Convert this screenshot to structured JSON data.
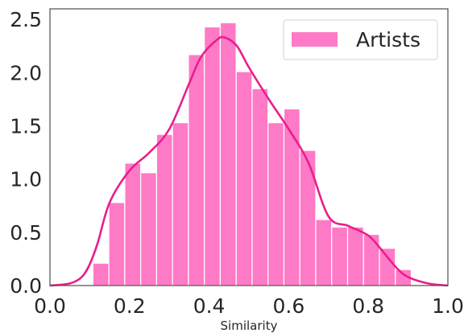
{
  "chart_data": {
    "type": "bar",
    "xlabel": "Similarity",
    "ylabel": "",
    "xlim": [
      0.0,
      1.0
    ],
    "ylim": [
      0.0,
      2.6
    ],
    "xticks": [
      "0.0",
      "0.2",
      "0.4",
      "0.6",
      "0.8",
      "1.0"
    ],
    "yticks": [
      "0.0",
      "0.5",
      "1.0",
      "1.5",
      "2.0",
      "2.5"
    ],
    "legend_position": "top-right",
    "grid": false,
    "series": [
      {
        "name": "Artists",
        "kind": "histogram",
        "color": "#ff7ac6",
        "bins": [
          {
            "x0": 0.108,
            "x1": 0.148,
            "value": 0.21
          },
          {
            "x0": 0.148,
            "x1": 0.188,
            "value": 0.78
          },
          {
            "x0": 0.188,
            "x1": 0.228,
            "value": 1.15
          },
          {
            "x0": 0.228,
            "x1": 0.268,
            "value": 1.06
          },
          {
            "x0": 0.268,
            "x1": 0.308,
            "value": 1.42
          },
          {
            "x0": 0.308,
            "x1": 0.348,
            "value": 1.53
          },
          {
            "x0": 0.348,
            "x1": 0.388,
            "value": 2.17
          },
          {
            "x0": 0.388,
            "x1": 0.428,
            "value": 2.43
          },
          {
            "x0": 0.428,
            "x1": 0.468,
            "value": 2.47
          },
          {
            "x0": 0.468,
            "x1": 0.508,
            "value": 2.01
          },
          {
            "x0": 0.508,
            "x1": 0.548,
            "value": 1.85
          },
          {
            "x0": 0.548,
            "x1": 0.588,
            "value": 1.53
          },
          {
            "x0": 0.588,
            "x1": 0.628,
            "value": 1.66
          },
          {
            "x0": 0.628,
            "x1": 0.668,
            "value": 1.27
          },
          {
            "x0": 0.668,
            "x1": 0.708,
            "value": 0.62
          },
          {
            "x0": 0.708,
            "x1": 0.748,
            "value": 0.55
          },
          {
            "x0": 0.748,
            "x1": 0.788,
            "value": 0.55
          },
          {
            "x0": 0.788,
            "x1": 0.828,
            "value": 0.48
          },
          {
            "x0": 0.828,
            "x1": 0.868,
            "value": 0.35
          },
          {
            "x0": 0.868,
            "x1": 0.908,
            "value": 0.15
          }
        ]
      },
      {
        "kind": "kde",
        "color": "#e91e8c",
        "x": [
          0.0,
          0.05,
          0.08,
          0.1,
          0.12,
          0.15,
          0.2,
          0.25,
          0.3,
          0.35,
          0.38,
          0.42,
          0.44,
          0.47,
          0.5,
          0.55,
          0.6,
          0.65,
          0.7,
          0.75,
          0.8,
          0.83,
          0.87,
          0.9,
          0.95,
          1.0
        ],
        "y": [
          0.0,
          0.02,
          0.08,
          0.2,
          0.4,
          0.78,
          1.08,
          1.25,
          1.47,
          1.9,
          2.15,
          2.31,
          2.33,
          2.25,
          2.05,
          1.75,
          1.47,
          1.15,
          0.65,
          0.56,
          0.47,
          0.35,
          0.17,
          0.08,
          0.02,
          0.0
        ]
      }
    ]
  }
}
